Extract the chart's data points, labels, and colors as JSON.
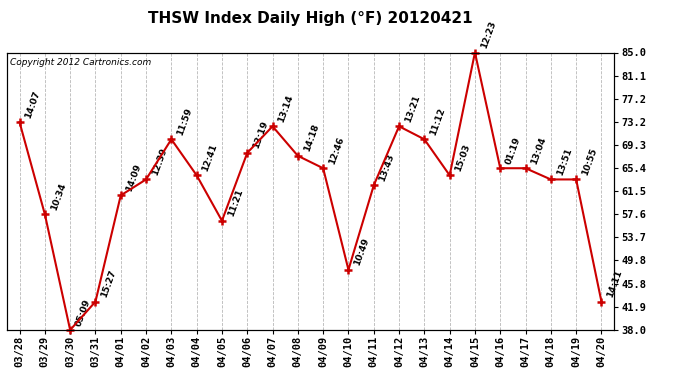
{
  "title": "THSW Index Daily High (°F) 20120421",
  "copyright": "Copyright 2012 Cartronics.com",
  "x_labels": [
    "03/28",
    "03/29",
    "03/30",
    "03/31",
    "04/01",
    "04/02",
    "04/03",
    "04/04",
    "04/05",
    "04/06",
    "04/07",
    "04/08",
    "04/09",
    "04/10",
    "04/11",
    "04/12",
    "04/13",
    "04/14",
    "04/15",
    "04/16",
    "04/17",
    "04/18",
    "04/19",
    "04/20"
  ],
  "y_values": [
    73.2,
    57.6,
    38.0,
    42.8,
    60.8,
    63.5,
    70.3,
    64.2,
    56.5,
    68.0,
    72.5,
    67.5,
    65.4,
    48.2,
    62.5,
    72.5,
    70.3,
    64.2,
    85.0,
    65.4,
    65.4,
    63.5,
    63.5,
    42.8
  ],
  "time_labels": [
    "14:07",
    "10:34",
    "05:09",
    "15:27",
    "14:09",
    "12:39",
    "11:59",
    "12:41",
    "11:21",
    "13:19",
    "13:14",
    "14:18",
    "12:46",
    "10:49",
    "13:43",
    "13:21",
    "11:12",
    "15:03",
    "12:23",
    "01:19",
    "13:04",
    "13:51",
    "10:55",
    "14:11"
  ],
  "y_ticks": [
    38.0,
    41.9,
    45.8,
    49.8,
    53.7,
    57.6,
    61.5,
    65.4,
    69.3,
    73.2,
    77.2,
    81.1,
    85.0
  ],
  "ylim": [
    38.0,
    85.0
  ],
  "line_color": "#cc0000",
  "marker_color": "#cc0000",
  "bg_color": "#ffffff",
  "plot_bg_color": "#ffffff",
  "grid_color": "#b0b0b0",
  "title_fontsize": 11,
  "copyright_fontsize": 6.5,
  "label_fontsize": 6.5,
  "tick_fontsize": 7.5,
  "annotation_rotation": 70
}
